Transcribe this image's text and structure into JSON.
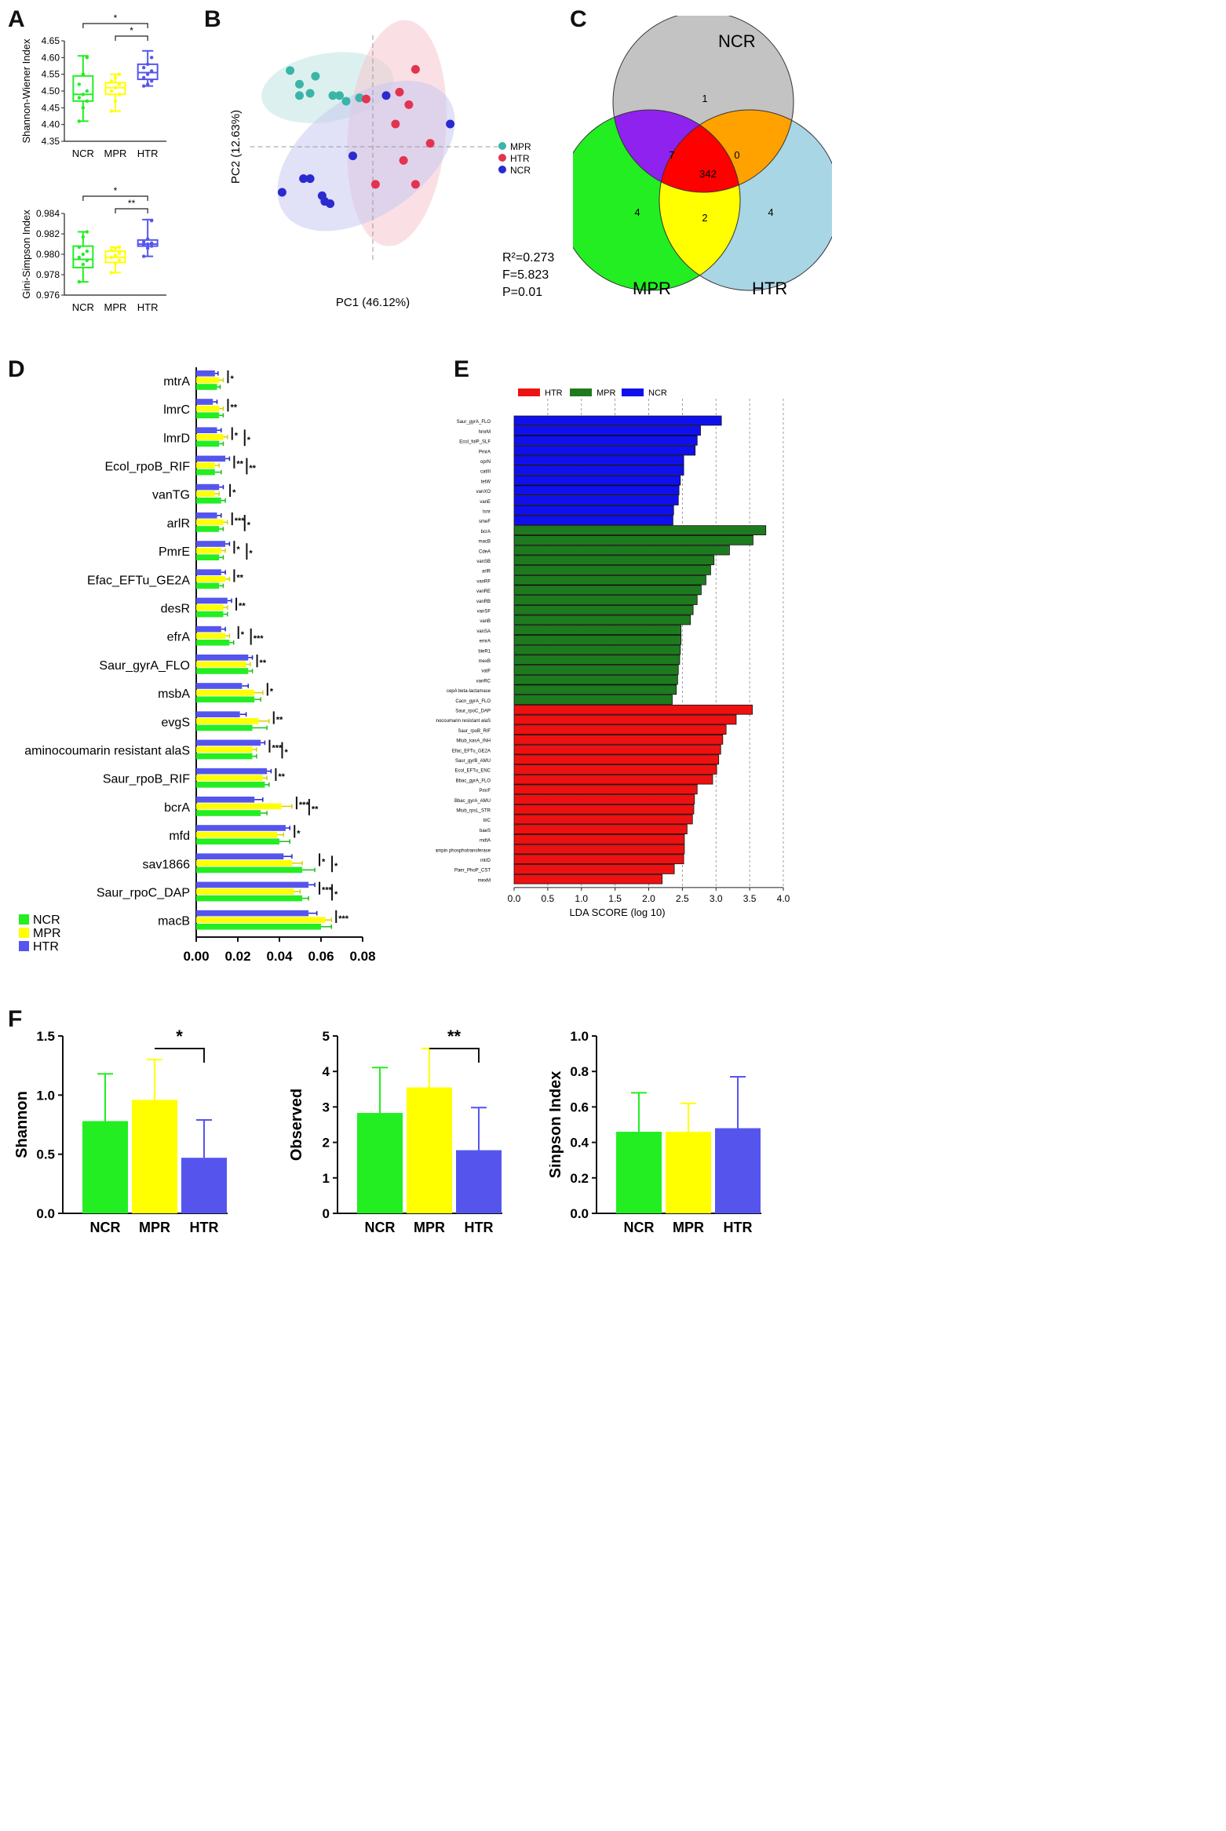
{
  "panel_labels": {
    "A": "A",
    "B": "B",
    "C": "C",
    "D": "D",
    "E": "E",
    "F": "F"
  },
  "colors": {
    "NCR": "#22ee22",
    "MPR": "#ffff00",
    "HTR": "#5555ee",
    "pca_MPR": "#3ab5a8",
    "pca_HTR": "#e33350",
    "pca_NCR": "#2a2ad0",
    "lefse_HTR": "#ee1111",
    "lefse_MPR": "#1e7a1e",
    "lefse_NCR": "#1010ee"
  },
  "chart_data": [
    {
      "id": "A1",
      "type": "box",
      "ylabel": "Shannon-Wiener Index",
      "categories": [
        "NCR",
        "MPR",
        "HTR"
      ],
      "ylim": [
        4.35,
        4.65
      ],
      "yticks": [
        "4.35",
        "4.40",
        "4.45",
        "4.50",
        "4.55",
        "4.60",
        "4.65"
      ],
      "boxes": [
        {
          "min": 4.41,
          "q1": 4.47,
          "median": 4.49,
          "q3": 4.545,
          "max": 4.605
        },
        {
          "min": 4.44,
          "q1": 4.49,
          "median": 4.51,
          "q3": 4.525,
          "max": 4.55
        },
        {
          "min": 4.515,
          "q1": 4.535,
          "median": 4.555,
          "q3": 4.58,
          "max": 4.62
        }
      ],
      "points": [
        [
          4.41,
          4.45,
          4.47,
          4.48,
          4.49,
          4.5,
          4.52,
          4.55,
          4.6
        ],
        [
          4.44,
          4.47,
          4.49,
          4.5,
          4.51,
          4.52,
          4.53,
          4.54,
          4.55
        ],
        [
          4.515,
          4.52,
          4.53,
          4.54,
          4.55,
          4.56,
          4.57,
          4.58,
          4.6
        ]
      ],
      "significance": [
        {
          "from": "NCR",
          "to": "HTR",
          "label": "*"
        },
        {
          "from": "MPR",
          "to": "HTR",
          "label": "*"
        }
      ]
    },
    {
      "id": "A2",
      "type": "box",
      "ylabel": "Gini-Simpson Index",
      "categories": [
        "NCR",
        "MPR",
        "HTR"
      ],
      "ylim": [
        0.976,
        0.984
      ],
      "yticks": [
        "0.976",
        "0.978",
        "0.980",
        "0.982",
        "0.984"
      ],
      "boxes": [
        {
          "min": 0.9773,
          "q1": 0.9787,
          "median": 0.9795,
          "q3": 0.9808,
          "max": 0.9822
        },
        {
          "min": 0.9782,
          "q1": 0.9792,
          "median": 0.9797,
          "q3": 0.9803,
          "max": 0.9807
        },
        {
          "min": 0.9798,
          "q1": 0.9808,
          "median": 0.981,
          "q3": 0.9814,
          "max": 0.9834
        }
      ],
      "points": [
        [
          0.9773,
          0.979,
          0.9794,
          0.9797,
          0.98,
          0.9803,
          0.9807,
          0.9817,
          0.9822
        ],
        [
          0.9782,
          0.9791,
          0.9794,
          0.9797,
          0.9799,
          0.9801,
          0.9804,
          0.9806,
          0.9807
        ],
        [
          0.9798,
          0.9806,
          0.9808,
          0.9809,
          0.981,
          0.9811,
          0.9812,
          0.9815,
          0.9833
        ]
      ],
      "significance": [
        {
          "from": "NCR",
          "to": "HTR",
          "label": "*"
        },
        {
          "from": "MPR",
          "to": "HTR",
          "label": "**"
        }
      ]
    },
    {
      "id": "B",
      "type": "scatter",
      "xlabel": "PC1 (46.12%)",
      "ylabel": "PC2 (12.63%)",
      "xlim": [
        -1,
        1
      ],
      "ylim": [
        -1,
        1
      ],
      "legend": [
        "MPR",
        "HTR",
        "NCR"
      ],
      "stats": [
        "R²=0.273",
        "F=5.823",
        "P=0.01"
      ],
      "series": [
        {
          "name": "MPR",
          "points": [
            [
              -0.62,
              0.67
            ],
            [
              -0.55,
              0.55
            ],
            [
              -0.43,
              0.62
            ],
            [
              -0.55,
              0.45
            ],
            [
              -0.47,
              0.47
            ],
            [
              -0.3,
              0.45
            ],
            [
              -0.25,
              0.45
            ],
            [
              -0.2,
              0.4
            ],
            [
              -0.1,
              0.43
            ]
          ]
        },
        {
          "name": "HTR",
          "points": [
            [
              0.32,
              0.68
            ],
            [
              0.27,
              0.37
            ],
            [
              0.17,
              0.2
            ],
            [
              0.43,
              0.03
            ],
            [
              0.23,
              -0.12
            ],
            [
              0.02,
              -0.33
            ],
            [
              0.32,
              -0.33
            ],
            [
              -0.05,
              0.42
            ],
            [
              0.2,
              0.48
            ]
          ]
        },
        {
          "name": "NCR",
          "points": [
            [
              -0.52,
              -0.28
            ],
            [
              -0.47,
              -0.28
            ],
            [
              -0.38,
              -0.43
            ],
            [
              -0.36,
              -0.48
            ],
            [
              -0.32,
              -0.5
            ],
            [
              -0.68,
              -0.4
            ],
            [
              0.58,
              0.2
            ],
            [
              -0.15,
              -0.08
            ],
            [
              0.1,
              0.45
            ]
          ]
        }
      ],
      "ellipses": [
        {
          "name": "MPR",
          "cx": -0.34,
          "cy": 0.52,
          "rx": 0.5,
          "ry": 0.3,
          "angle": -10
        },
        {
          "name": "HTR",
          "cx": 0.18,
          "cy": 0.12,
          "rx": 0.85,
          "ry": 0.43,
          "angle": -85
        },
        {
          "name": "NCR",
          "cx": -0.05,
          "cy": -0.08,
          "rx": 0.75,
          "ry": 0.52,
          "angle": -35
        }
      ]
    },
    {
      "id": "C",
      "type": "venn",
      "sets": [
        "NCR",
        "MPR",
        "HTR"
      ],
      "regions": {
        "NCR_only": 1,
        "MPR_only": 4,
        "HTR_only": 4,
        "NCR_MPR": 7,
        "NCR_HTR": 0,
        "MPR_HTR": 2,
        "all": 342
      }
    },
    {
      "id": "D",
      "type": "bar-horizontal",
      "xlim": [
        0,
        0.08
      ],
      "xticks": [
        "0.00",
        "0.02",
        "0.04",
        "0.06",
        "0.08"
      ],
      "legend": [
        "NCR",
        "MPR",
        "HTR"
      ],
      "categories": [
        "mtrA",
        "lmrC",
        "lmrD",
        "Ecol_rpoB_RIF",
        "vanTG",
        "arlR",
        "PmrE",
        "Efac_EFTu_GE2A",
        "desR",
        "efrA",
        "Saur_gyrA_FLO",
        "msbA",
        "evgS",
        "aminocoumarin resistant alaS",
        "Saur_rpoB_RIF",
        "bcrA",
        "mfd",
        "sav1866",
        "Saur_rpoC_DAP",
        "macB"
      ],
      "series": [
        {
          "name": "HTR",
          "values": [
            0.009,
            0.008,
            0.01,
            0.014,
            0.011,
            0.01,
            0.014,
            0.012,
            0.015,
            0.012,
            0.025,
            0.022,
            0.021,
            0.031,
            0.034,
            0.028,
            0.043,
            0.042,
            0.054,
            0.054
          ],
          "errors": [
            0.0015,
            0.002,
            0.002,
            0.002,
            0.002,
            0.002,
            0.002,
            0.002,
            0.002,
            0.002,
            0.002,
            0.003,
            0.003,
            0.002,
            0.002,
            0.004,
            0.002,
            0.004,
            0.003,
            0.004
          ]
        },
        {
          "name": "MPR",
          "values": [
            0.011,
            0.011,
            0.013,
            0.009,
            0.009,
            0.013,
            0.012,
            0.014,
            0.013,
            0.014,
            0.024,
            0.028,
            0.03,
            0.027,
            0.032,
            0.041,
            0.039,
            0.046,
            0.047,
            0.062
          ],
          "errors": [
            0.002,
            0.002,
            0.002,
            0.002,
            0.002,
            0.002,
            0.002,
            0.002,
            0.002,
            0.002,
            0.002,
            0.004,
            0.005,
            0.002,
            0.002,
            0.005,
            0.003,
            0.005,
            0.003,
            0.003
          ]
        },
        {
          "name": "NCR",
          "values": [
            0.01,
            0.011,
            0.011,
            0.009,
            0.012,
            0.011,
            0.011,
            0.011,
            0.013,
            0.016,
            0.025,
            0.028,
            0.027,
            0.027,
            0.033,
            0.031,
            0.04,
            0.051,
            0.051,
            0.06
          ],
          "errors": [
            0.0015,
            0.002,
            0.002,
            0.003,
            0.002,
            0.002,
            0.002,
            0.002,
            0.002,
            0.002,
            0.002,
            0.003,
            0.007,
            0.002,
            0.002,
            0.003,
            0.005,
            0.006,
            0.003,
            0.005
          ]
        }
      ],
      "significance": [
        [
          "*"
        ],
        [
          "**"
        ],
        [
          "*",
          "*"
        ],
        [
          "**",
          "**"
        ],
        [
          "*"
        ],
        [
          "***",
          "*"
        ],
        [
          "*",
          "*"
        ],
        [
          "**"
        ],
        [
          "**"
        ],
        [
          "*",
          "***"
        ],
        [
          "**"
        ],
        [
          "*"
        ],
        [
          "**"
        ],
        [
          "***",
          "*"
        ],
        [
          "**"
        ],
        [
          "***",
          "**"
        ],
        [
          "*"
        ],
        [
          "*",
          "*"
        ],
        [
          "***",
          "*"
        ],
        [
          "***"
        ]
      ]
    },
    {
      "id": "E",
      "type": "bar-horizontal",
      "xlabel": "LDA SCORE (log 10)",
      "xlim": [
        0,
        4.0
      ],
      "xticks": [
        "0.0",
        "0.5",
        "1.0",
        "1.5",
        "2.0",
        "2.5",
        "3.0",
        "3.5",
        "4.0"
      ],
      "legend": [
        "HTR",
        "MPR",
        "NCR"
      ],
      "groups": [
        {
          "name": "NCR",
          "labels": [
            "Saur_gyrA_FLO",
            "hmrM",
            "Ecol_folP_SLF",
            "PmrA",
            "oprN",
            "catIII",
            "tetW",
            "vanXO",
            "vanE",
            "tsnr",
            "smeF"
          ],
          "values": [
            3.08,
            2.77,
            2.72,
            2.69,
            2.52,
            2.52,
            2.47,
            2.45,
            2.44,
            2.37,
            2.36
          ]
        },
        {
          "name": "MPR",
          "labels": [
            "bcrA",
            "macB",
            "CdeA",
            "vanSB",
            "arlR",
            "vanRF",
            "vanRE",
            "vanRB",
            "vanSF",
            "vanB",
            "vanSA",
            "emrA",
            "bleR1",
            "mexB",
            "vatF",
            "vanRC",
            "cepA beta-lactamase",
            "Cacn_gyrA_FLO"
          ],
          "values": [
            3.74,
            3.55,
            3.2,
            2.97,
            2.92,
            2.85,
            2.78,
            2.72,
            2.66,
            2.62,
            2.48,
            2.48,
            2.47,
            2.46,
            2.44,
            2.43,
            2.41,
            2.35
          ]
        },
        {
          "name": "HTR",
          "labels": [
            "Saur_rpoC_DAP",
            "aminocoumarin resistant alaS",
            "Saur_rpoB_RIF",
            "Mtub_kasA_INH",
            "Efac_EFTu_GE2A",
            "Saur_gyrB_AMU",
            "Ecol_EFTu_ENC",
            "Bbac_gyrA_FLO",
            "PmrF",
            "Bbac_gyrA_AMU",
            "Mtub_rpsL_STR",
            "tlrC",
            "baeS",
            "mdtA",
            "rifampin phosphotransferase",
            "mtrD",
            "Paer_PhoP_CST",
            "mexM"
          ],
          "values": [
            3.54,
            3.3,
            3.15,
            3.1,
            3.07,
            3.04,
            3.01,
            2.95,
            2.72,
            2.68,
            2.67,
            2.65,
            2.57,
            2.53,
            2.53,
            2.52,
            2.38,
            2.2
          ]
        }
      ]
    },
    {
      "id": "F1",
      "type": "bar",
      "ylabel": "Shannon",
      "categories": [
        "NCR",
        "MPR",
        "HTR"
      ],
      "values": [
        0.78,
        0.96,
        0.47
      ],
      "errors": [
        0.4,
        0.34,
        0.32
      ],
      "ylim": [
        0,
        1.5
      ],
      "yticks": [
        "0.0",
        "0.5",
        "1.0",
        "1.5"
      ],
      "significance": {
        "from": "MPR",
        "to": "HTR",
        "label": "*"
      }
    },
    {
      "id": "F2",
      "type": "bar",
      "ylabel": "Observed",
      "categories": [
        "NCR",
        "MPR",
        "HTR"
      ],
      "values": [
        2.83,
        3.55,
        1.78
      ],
      "errors": [
        1.28,
        1.1,
        1.2
      ],
      "ylim": [
        0,
        5
      ],
      "yticks": [
        "0",
        "1",
        "2",
        "3",
        "4",
        "5"
      ],
      "significance": {
        "from": "MPR",
        "to": "HTR",
        "label": "**"
      }
    },
    {
      "id": "F3",
      "type": "bar",
      "ylabel": "Sinpson Index",
      "categories": [
        "NCR",
        "MPR",
        "HTR"
      ],
      "values": [
        0.46,
        0.46,
        0.48
      ],
      "errors": [
        0.22,
        0.16,
        0.29
      ],
      "ylim": [
        0,
        1.0
      ],
      "yticks": [
        "0.0",
        "0.2",
        "0.4",
        "0.6",
        "0.8",
        "1.0"
      ],
      "significance": null
    }
  ]
}
